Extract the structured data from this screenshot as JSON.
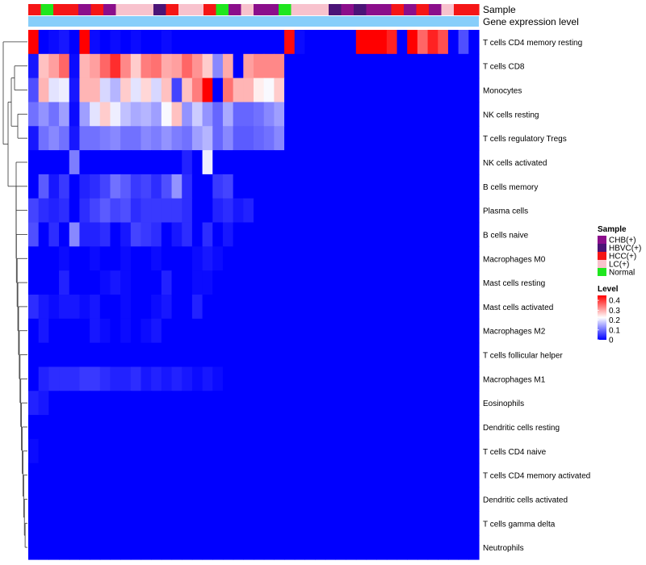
{
  "chart_data": {
    "type": "heatmap",
    "title": "",
    "annotation_rows": [
      "Sample",
      "Gene expression level"
    ],
    "sample_palette": {
      "CHB(+)": "#8b0e8b",
      "HBVC(+)": "#4b1477",
      "HCC(+)": "#f51616",
      "LC(+)": "#f8c2cd",
      "Normal": "#1ee61e"
    },
    "gene_expression_color": "#87cefa",
    "samples": [
      "HCC(+)",
      "Normal",
      "HCC(+)",
      "HCC(+)",
      "CHB(+)",
      "HCC(+)",
      "CHB(+)",
      "LC(+)",
      "LC(+)",
      "LC(+)",
      "HBVC(+)",
      "HCC(+)",
      "LC(+)",
      "LC(+)",
      "HCC(+)",
      "Normal",
      "CHB(+)",
      "LC(+)",
      "CHB(+)",
      "CHB(+)",
      "Normal",
      "LC(+)",
      "LC(+)",
      "LC(+)",
      "HBVC(+)",
      "CHB(+)",
      "HBVC(+)",
      "CHB(+)",
      "CHB(+)",
      "HCC(+)",
      "CHB(+)",
      "HCC(+)",
      "CHB(+)",
      "LC(+)",
      "HCC(+)",
      "HCC(+)"
    ],
    "rows": [
      "T cells CD4 memory resting",
      "T cells CD8",
      "Monocytes",
      "NK cells resting",
      "T cells regulatory  Tregs",
      "NK cells activated",
      "B cells memory",
      "Plasma cells",
      "B cells naive",
      "Macrophages M0",
      "Mast cells resting",
      "Mast cells activated",
      "Macrophages M2",
      "T cells follicular helper",
      "Macrophages M1",
      "Eosinophils",
      "Dendritic cells resting",
      "T cells CD4 naive",
      "T cells CD4 memory activated",
      "Dendritic cells activated",
      "T cells gamma delta",
      "Neutrophils"
    ],
    "values": [
      [
        0.45,
        0.0,
        0.01,
        0.02,
        0.0,
        0.45,
        0.01,
        0.0,
        0.01,
        0.0,
        0.01,
        0.0,
        0.0,
        0.01,
        0.0,
        0.0,
        0.0,
        0.0,
        0.0,
        0.0,
        0.0,
        0.0,
        0.0,
        0.0,
        0.0,
        0.44,
        0.01,
        0.0,
        0.0,
        0.0,
        0.0,
        0.0,
        0.45,
        0.45,
        0.45,
        0.42,
        0.0,
        0.45,
        0.36,
        0.42,
        0.38,
        0.0,
        0.07,
        0.0
      ],
      [
        0.02,
        0.28,
        0.31,
        0.36,
        0.01,
        0.29,
        0.31,
        0.36,
        0.41,
        0.33,
        0.27,
        0.34,
        0.35,
        0.3,
        0.31,
        0.36,
        0.32,
        0.27,
        0.12,
        0.3,
        0.0,
        0.31,
        0.33,
        0.33,
        0.33,
        0.0,
        0.0,
        0.0,
        0.0,
        0.0,
        0.0,
        0.0,
        0.0,
        0.0,
        0.0,
        0.0,
        0.0,
        0.0,
        0.0,
        0.0,
        0.0,
        0.0,
        0.0,
        0.0
      ],
      [
        0.07,
        0.29,
        0.2,
        0.21,
        0.02,
        0.29,
        0.29,
        0.19,
        0.16,
        0.27,
        0.2,
        0.26,
        0.19,
        0.28,
        0.06,
        0.28,
        0.34,
        0.45,
        0.0,
        0.35,
        0.29,
        0.29,
        0.24,
        0.22,
        0.27,
        0.0,
        0.0,
        0.0,
        0.0,
        0.0,
        0.0,
        0.0,
        0.0,
        0.0,
        0.0,
        0.0,
        0.0,
        0.0,
        0.0,
        0.0,
        0.0,
        0.0,
        0.0,
        0.0
      ],
      [
        0.1,
        0.13,
        0.1,
        0.14,
        0.01,
        0.14,
        0.2,
        0.27,
        0.21,
        0.17,
        0.15,
        0.16,
        0.14,
        0.22,
        0.28,
        0.13,
        0.18,
        0.13,
        0.09,
        0.15,
        0.09,
        0.09,
        0.1,
        0.12,
        0.14,
        0.0,
        0.0,
        0.0,
        0.0,
        0.0,
        0.0,
        0.0,
        0.0,
        0.0,
        0.0,
        0.0,
        0.0,
        0.0,
        0.0,
        0.0,
        0.0,
        0.0,
        0.0,
        0.0
      ],
      [
        0.02,
        0.1,
        0.12,
        0.1,
        0.02,
        0.1,
        0.1,
        0.11,
        0.12,
        0.1,
        0.1,
        0.12,
        0.11,
        0.13,
        0.11,
        0.1,
        0.14,
        0.16,
        0.09,
        0.12,
        0.08,
        0.08,
        0.09,
        0.1,
        0.12,
        0.0,
        0.0,
        0.0,
        0.0,
        0.0,
        0.0,
        0.0,
        0.0,
        0.0,
        0.0,
        0.0,
        0.0,
        0.0,
        0.0,
        0.0,
        0.0,
        0.0,
        0.0,
        0.0
      ],
      [
        0.0,
        0.0,
        0.0,
        0.0,
        0.11,
        0.0,
        0.0,
        0.0,
        0.0,
        0.0,
        0.0,
        0.0,
        0.0,
        0.0,
        0.0,
        0.03,
        0.0,
        0.21,
        0.0,
        0.0,
        0.0,
        0.0,
        0.0,
        0.0,
        0.0,
        0.0,
        0.0,
        0.0,
        0.0,
        0.0,
        0.0,
        0.0,
        0.0,
        0.0,
        0.0,
        0.0,
        0.0,
        0.0,
        0.0,
        0.0,
        0.0,
        0.0,
        0.0,
        0.0
      ],
      [
        0.0,
        0.08,
        0.02,
        0.05,
        0.0,
        0.03,
        0.04,
        0.06,
        0.1,
        0.08,
        0.05,
        0.06,
        0.04,
        0.07,
        0.13,
        0.04,
        0.0,
        0.0,
        0.05,
        0.06,
        0.0,
        0.0,
        0.0,
        0.0,
        0.0,
        0.0,
        0.0,
        0.0,
        0.0,
        0.0,
        0.0,
        0.0,
        0.0,
        0.0,
        0.0,
        0.0,
        0.0,
        0.0,
        0.0,
        0.0,
        0.0,
        0.0,
        0.0,
        0.0
      ],
      [
        0.06,
        0.04,
        0.03,
        0.04,
        0.0,
        0.04,
        0.06,
        0.08,
        0.06,
        0.07,
        0.04,
        0.05,
        0.05,
        0.05,
        0.05,
        0.04,
        0.0,
        0.0,
        0.03,
        0.04,
        0.02,
        0.03,
        0.0,
        0.0,
        0.0,
        0.0,
        0.0,
        0.0,
        0.0,
        0.0,
        0.0,
        0.0,
        0.0,
        0.0,
        0.0,
        0.0,
        0.0,
        0.0,
        0.0,
        0.0,
        0.0,
        0.0,
        0.0,
        0.0
      ],
      [
        0.07,
        0.0,
        0.04,
        0.0,
        0.12,
        0.03,
        0.03,
        0.04,
        0.0,
        0.02,
        0.06,
        0.05,
        0.04,
        0.0,
        0.02,
        0.04,
        0.0,
        0.04,
        0.0,
        0.02,
        0.0,
        0.0,
        0.0,
        0.0,
        0.0,
        0.0,
        0.0,
        0.0,
        0.0,
        0.0,
        0.0,
        0.0,
        0.0,
        0.0,
        0.0,
        0.0,
        0.0,
        0.0,
        0.0,
        0.0,
        0.0,
        0.0,
        0.0,
        0.0
      ],
      [
        0.0,
        0.0,
        0.0,
        0.01,
        0.0,
        0.0,
        0.01,
        0.0,
        0.0,
        0.01,
        0.0,
        0.0,
        0.01,
        0.0,
        0.0,
        0.0,
        0.01,
        0.02,
        0.01,
        0.0,
        0.0,
        0.0,
        0.0,
        0.0,
        0.0,
        0.0,
        0.0,
        0.0,
        0.0,
        0.0,
        0.0,
        0.0,
        0.0,
        0.0,
        0.0,
        0.0,
        0.0,
        0.0,
        0.0,
        0.0,
        0.0,
        0.0,
        0.0,
        0.0
      ],
      [
        0.0,
        0.0,
        0.0,
        0.03,
        0.0,
        0.0,
        0.0,
        0.01,
        0.02,
        0.01,
        0.0,
        0.0,
        0.0,
        0.03,
        0.0,
        0.0,
        0.01,
        0.01,
        0.0,
        0.0,
        0.0,
        0.0,
        0.0,
        0.0,
        0.0,
        0.0,
        0.0,
        0.0,
        0.0,
        0.0,
        0.0,
        0.0,
        0.0,
        0.0,
        0.0,
        0.0,
        0.0,
        0.0,
        0.0,
        0.0,
        0.0,
        0.0,
        0.0,
        0.0
      ],
      [
        0.04,
        0.02,
        0.01,
        0.02,
        0.02,
        0.01,
        0.02,
        0.0,
        0.0,
        0.01,
        0.0,
        0.0,
        0.01,
        0.02,
        0.0,
        0.0,
        0.03,
        0.0,
        0.0,
        0.0,
        0.0,
        0.0,
        0.0,
        0.0,
        0.0,
        0.0,
        0.0,
        0.0,
        0.0,
        0.0,
        0.0,
        0.0,
        0.0,
        0.0,
        0.0,
        0.0,
        0.0,
        0.0,
        0.0,
        0.0,
        0.0,
        0.0,
        0.0,
        0.0
      ],
      [
        0.0,
        0.02,
        0.0,
        0.0,
        0.0,
        0.0,
        0.02,
        0.01,
        0.0,
        0.01,
        0.0,
        0.01,
        0.02,
        0.0,
        0.0,
        0.0,
        0.0,
        0.0,
        0.0,
        0.0,
        0.0,
        0.0,
        0.0,
        0.0,
        0.0,
        0.0,
        0.0,
        0.0,
        0.0,
        0.0,
        0.0,
        0.0,
        0.0,
        0.0,
        0.0,
        0.0,
        0.0,
        0.0,
        0.0,
        0.0,
        0.0,
        0.0,
        0.0,
        0.0
      ],
      [
        0.0,
        0.0,
        0.0,
        0.0,
        0.0,
        0.0,
        0.0,
        0.0,
        0.0,
        0.0,
        0.0,
        0.0,
        0.0,
        0.0,
        0.0,
        0.0,
        0.0,
        0.0,
        0.0,
        0.0,
        0.0,
        0.0,
        0.0,
        0.0,
        0.0,
        0.0,
        0.0,
        0.0,
        0.0,
        0.0,
        0.0,
        0.0,
        0.0,
        0.0,
        0.0,
        0.0,
        0.0,
        0.0,
        0.0,
        0.0,
        0.0,
        0.0,
        0.0,
        0.0
      ],
      [
        0.0,
        0.03,
        0.04,
        0.04,
        0.04,
        0.05,
        0.05,
        0.04,
        0.03,
        0.03,
        0.04,
        0.02,
        0.03,
        0.02,
        0.03,
        0.02,
        0.01,
        0.02,
        0.01,
        0.0,
        0.0,
        0.0,
        0.0,
        0.0,
        0.0,
        0.0,
        0.0,
        0.0,
        0.0,
        0.0,
        0.0,
        0.0,
        0.0,
        0.0,
        0.0,
        0.0,
        0.0,
        0.0,
        0.0,
        0.0,
        0.0,
        0.0,
        0.0,
        0.0
      ],
      [
        0.03,
        0.02,
        0.0,
        0.0,
        0.0,
        0.0,
        0.0,
        0.0,
        0.0,
        0.0,
        0.0,
        0.0,
        0.0,
        0.0,
        0.0,
        0.0,
        0.0,
        0.0,
        0.0,
        0.0,
        0.0,
        0.0,
        0.0,
        0.0,
        0.0,
        0.0,
        0.0,
        0.0,
        0.0,
        0.0,
        0.0,
        0.0,
        0.0,
        0.0,
        0.0,
        0.0,
        0.0,
        0.0,
        0.0,
        0.0,
        0.0,
        0.0,
        0.0,
        0.0
      ],
      [
        0.0,
        0.0,
        0.0,
        0.0,
        0.0,
        0.0,
        0.0,
        0.0,
        0.0,
        0.0,
        0.0,
        0.0,
        0.0,
        0.0,
        0.0,
        0.0,
        0.0,
        0.0,
        0.0,
        0.0,
        0.0,
        0.0,
        0.0,
        0.0,
        0.0,
        0.0,
        0.0,
        0.0,
        0.0,
        0.0,
        0.0,
        0.0,
        0.0,
        0.0,
        0.0,
        0.0,
        0.0,
        0.0,
        0.0,
        0.0,
        0.0,
        0.0,
        0.0,
        0.0
      ],
      [
        0.01,
        0.0,
        0.0,
        0.0,
        0.0,
        0.0,
        0.0,
        0.0,
        0.0,
        0.0,
        0.0,
        0.0,
        0.0,
        0.0,
        0.0,
        0.0,
        0.0,
        0.0,
        0.0,
        0.0,
        0.0,
        0.0,
        0.0,
        0.0,
        0.0,
        0.0,
        0.0,
        0.0,
        0.0,
        0.0,
        0.0,
        0.0,
        0.0,
        0.0,
        0.0,
        0.0,
        0.0,
        0.0,
        0.0,
        0.0,
        0.0,
        0.0,
        0.0,
        0.0
      ],
      [
        0.0,
        0.0,
        0.0,
        0.0,
        0.0,
        0.0,
        0.0,
        0.0,
        0.0,
        0.0,
        0.0,
        0.0,
        0.0,
        0.0,
        0.0,
        0.0,
        0.0,
        0.0,
        0.0,
        0.0,
        0.0,
        0.0,
        0.0,
        0.0,
        0.0,
        0.0,
        0.0,
        0.0,
        0.0,
        0.0,
        0.0,
        0.0,
        0.0,
        0.0,
        0.0,
        0.0,
        0.0,
        0.0,
        0.0,
        0.0,
        0.0,
        0.0,
        0.0,
        0.0
      ],
      [
        0.0,
        0.0,
        0.0,
        0.0,
        0.0,
        0.0,
        0.0,
        0.0,
        0.0,
        0.0,
        0.0,
        0.0,
        0.0,
        0.0,
        0.0,
        0.0,
        0.0,
        0.0,
        0.0,
        0.0,
        0.0,
        0.0,
        0.0,
        0.0,
        0.0,
        0.0,
        0.0,
        0.0,
        0.0,
        0.0,
        0.0,
        0.0,
        0.0,
        0.0,
        0.0,
        0.0,
        0.0,
        0.0,
        0.0,
        0.0,
        0.0,
        0.0,
        0.0,
        0.0
      ],
      [
        0.0,
        0.0,
        0.0,
        0.0,
        0.0,
        0.0,
        0.0,
        0.0,
        0.0,
        0.0,
        0.0,
        0.0,
        0.0,
        0.0,
        0.0,
        0.0,
        0.0,
        0.0,
        0.0,
        0.0,
        0.0,
        0.0,
        0.0,
        0.0,
        0.0,
        0.0,
        0.0,
        0.0,
        0.0,
        0.0,
        0.0,
        0.0,
        0.0,
        0.0,
        0.0,
        0.0,
        0.0,
        0.0,
        0.0,
        0.0,
        0.0,
        0.0,
        0.0,
        0.0
      ],
      [
        0.0,
        0.0,
        0.0,
        0.0,
        0.0,
        0.0,
        0.0,
        0.0,
        0.0,
        0.0,
        0.0,
        0.0,
        0.0,
        0.0,
        0.0,
        0.0,
        0.0,
        0.0,
        0.0,
        0.0,
        0.0,
        0.0,
        0.0,
        0.0,
        0.0,
        0.0,
        0.0,
        0.0,
        0.0,
        0.0,
        0.0,
        0.0,
        0.0,
        0.0,
        0.0,
        0.0,
        0.0,
        0.0,
        0.0,
        0.0,
        0.0,
        0.0,
        0.0,
        0.0
      ]
    ],
    "legend_sample": {
      "title": "Sample",
      "entries": [
        {
          "label": "CHB(+)",
          "color": "#8b0e8b"
        },
        {
          "label": "HBVC(+)",
          "color": "#4b1477"
        },
        {
          "label": "HCC(+)",
          "color": "#f51616"
        },
        {
          "label": "LC(+)",
          "color": "#f8c2cd"
        },
        {
          "label": "Normal",
          "color": "#1ee61e"
        }
      ]
    },
    "legend_level": {
      "title": "Level",
      "ticks": [
        "0.4",
        "0.3",
        "0.2",
        "0.1",
        "0"
      ],
      "tick_values": [
        0.4,
        0.3,
        0.2,
        0.1,
        0.0
      ],
      "range": [
        0,
        0.45
      ],
      "colors": {
        "low": "#0000ff",
        "mid": "#ffffff",
        "high": "#ff0000"
      }
    }
  }
}
